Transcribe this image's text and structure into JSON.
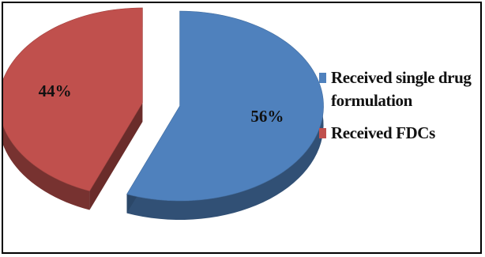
{
  "chart_data": {
    "type": "pie",
    "style": "3d-exploded",
    "slices": [
      {
        "label": "Received single drug formulation",
        "value": 56,
        "value_label": "56%",
        "color": "#4f81bd"
      },
      {
        "label": "Received FDCs",
        "value": 44,
        "value_label": "44%",
        "color": "#c0504d"
      }
    ],
    "legend": {
      "position": "right",
      "items": [
        {
          "label": "Received single drug formulation",
          "color": "#4f81bd"
        },
        {
          "label": "Received FDCs",
          "color": "#c0504d"
        }
      ]
    }
  }
}
